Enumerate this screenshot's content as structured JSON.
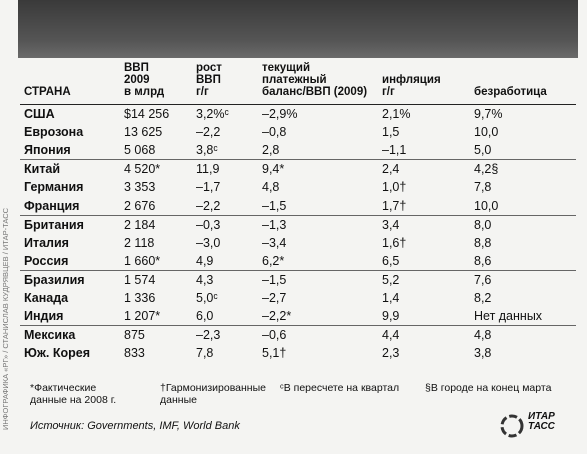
{
  "header": {
    "columns": [
      "СТРАНА",
      "ВВП\n2009\nв млрд",
      "рост\nВВП\nг/г",
      "текущий\nплатежный\nбаланс/ВВП (2009)",
      "инфляция\nг/г",
      "безработица"
    ]
  },
  "table": {
    "rows": [
      [
        "США",
        "$14 256",
        "3,2%ᶜ",
        "–2,9%",
        "2,1%",
        "9,7%"
      ],
      [
        "Еврозона",
        "13 625",
        "–2,2",
        "–0,8",
        "1,5",
        "10,0"
      ],
      [
        "Япония",
        "5 068",
        "3,8ᶜ",
        "2,8",
        "–1,1",
        "5,0"
      ],
      [
        "Китай",
        "4 520*",
        "11,9",
        "9,4*",
        "2,4",
        "4,2§"
      ],
      [
        "Германия",
        "3 353",
        "–1,7",
        "4,8",
        "1,0†",
        "7,8"
      ],
      [
        "Франция",
        "2 676",
        "–2,2",
        "–1,5",
        "1,7†",
        "10,0"
      ],
      [
        "Британия",
        "2 184",
        "–0,3",
        "–1,3",
        "3,4",
        "8,0"
      ],
      [
        "Италия",
        "2 118",
        "–3,0",
        "–3,4",
        "1,6†",
        "8,8"
      ],
      [
        "Россия",
        "1 660*",
        "4,9",
        "6,2*",
        "6,5",
        "8,6"
      ],
      [
        "Бразилия",
        "1 574",
        "4,3",
        "–1,5",
        "5,2",
        "7,6"
      ],
      [
        "Канада",
        "1 336",
        "5,0ᶜ",
        "–2,7",
        "1,4",
        "8,2"
      ],
      [
        "Индия",
        "1 207*",
        "6,0",
        "–2,2*",
        "9,9",
        "Нет данных"
      ],
      [
        "Мексика",
        "875",
        "–2,3",
        "–0,6",
        "4,4",
        "4,8"
      ],
      [
        "Юж. Корея",
        "833",
        "7,8",
        "5,1†",
        "2,3",
        "3,8"
      ]
    ]
  },
  "footnotes": [
    "*Фактические\nданные на 2008 г.",
    "†Гармонизированные\nданные",
    "ᶜВ пересчете на квартал",
    "§В городе на конец марта"
  ],
  "source": "Источник: Governments, IMF, World Bank",
  "side_credit": "ИНФОГРАФИКА «РГ» / СТАНИСЛАВ КУДРЯВЦЕВ / ИТАР-ТАСС",
  "logo": "ИТАР\nТАСС"
}
